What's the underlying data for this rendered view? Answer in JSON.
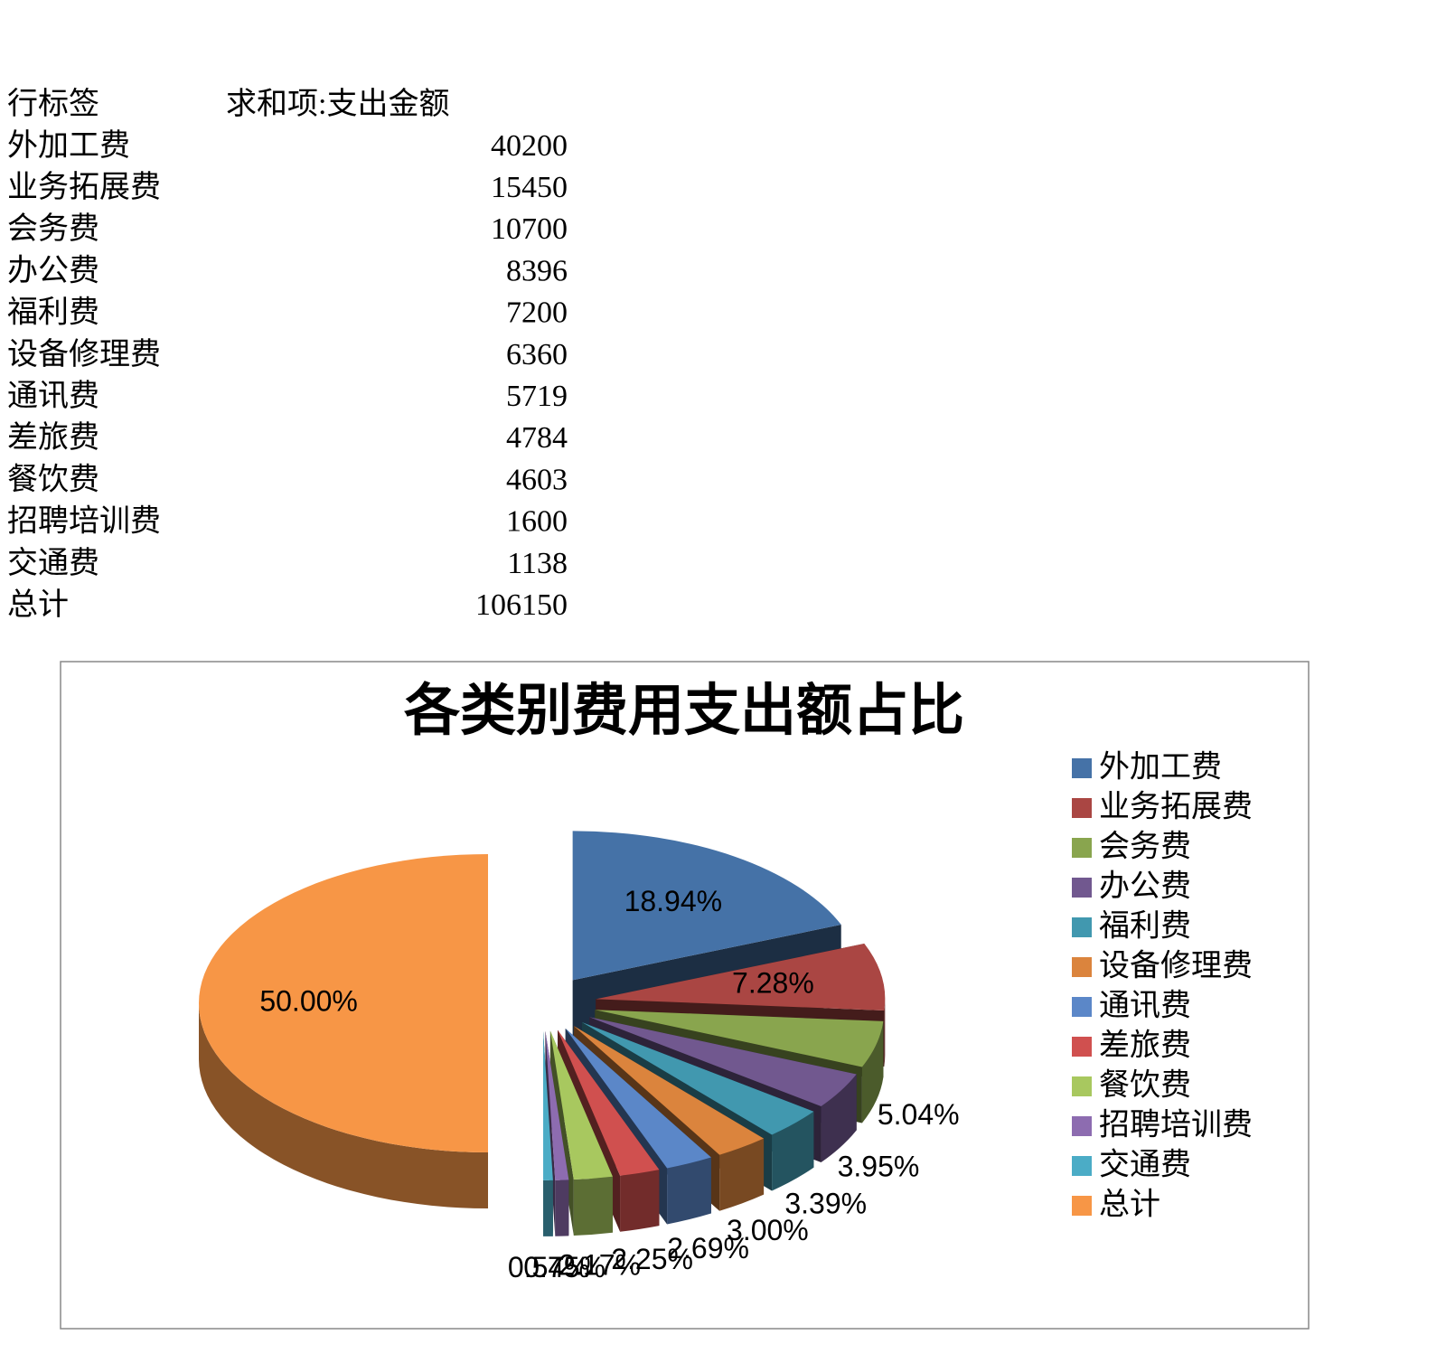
{
  "table": {
    "header": [
      "行标签",
      "求和项:支出金额"
    ],
    "rows": [
      [
        "外加工费",
        40200
      ],
      [
        "业务拓展费",
        15450
      ],
      [
        "会务费",
        10700
      ],
      [
        "办公费",
        8396
      ],
      [
        "福利费",
        7200
      ],
      [
        "设备修理费",
        6360
      ],
      [
        "通讯费",
        5719
      ],
      [
        "差旅费",
        4784
      ],
      [
        "餐饮费",
        4603
      ],
      [
        "招聘培训费",
        1600
      ],
      [
        "交通费",
        1138
      ],
      [
        "总计",
        106150
      ]
    ]
  },
  "chart_data": {
    "type": "pie",
    "title": "各类别费用支出额占比",
    "categories": [
      "外加工费",
      "业务拓展费",
      "会务费",
      "办公费",
      "福利费",
      "设备修理费",
      "通讯费",
      "差旅费",
      "餐饮费",
      "招聘培训费",
      "交通费",
      "总计"
    ],
    "values": [
      18.94,
      7.28,
      5.04,
      3.95,
      3.39,
      3.0,
      2.69,
      2.25,
      2.17,
      0.75,
      0.54,
      50.0
    ],
    "value_labels": [
      "18.94%",
      "7.28%",
      "5.04%",
      "3.95%",
      "3.39%",
      "3.00%",
      "2.69%",
      "2.25%",
      "2.17%",
      "0.75%",
      "0.54%",
      "50.00%"
    ],
    "colors": [
      "#4572a7",
      "#aa4643",
      "#89a54e",
      "#71588f",
      "#4198af",
      "#db843d",
      "#5b87c8",
      "#d0504f",
      "#a8c85f",
      "#8d6cb0",
      "#4bacc6",
      "#f79646"
    ],
    "legend": "right"
  }
}
